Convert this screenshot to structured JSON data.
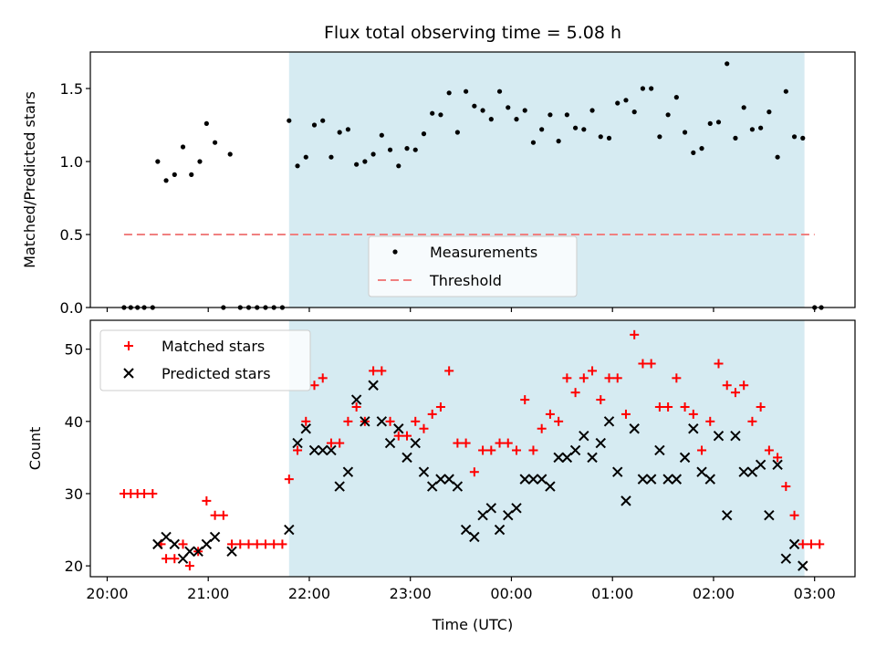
{
  "figure": {
    "title": "Flux total observing time = 5.08 h",
    "xlabel": "Time (UTC)"
  },
  "chart_data": [
    {
      "type": "scatter",
      "ylabel": "Matched/Predicted stars",
      "ylim": [
        0,
        1.75
      ],
      "yticks": [
        "0.0",
        "0.5",
        "1.0",
        "1.5"
      ],
      "xlim": [
        "19:50",
        "03:24"
      ],
      "shaded_region": [
        "21:48",
        "02:54"
      ],
      "threshold": {
        "name": "Threshold",
        "value": 0.5,
        "x_range": [
          "20:10",
          "03:00"
        ],
        "color": "#f08080"
      },
      "legend": [
        "Measurements",
        "Threshold"
      ],
      "legend_position": "bottom-center",
      "series": [
        {
          "name": "Measurements",
          "color": "#000000",
          "points": [
            [
              "20:10",
              0
            ],
            [
              "20:14",
              0
            ],
            [
              "20:18",
              0
            ],
            [
              "20:22",
              0
            ],
            [
              "20:27",
              0
            ],
            [
              "20:30",
              1.0
            ],
            [
              "20:35",
              0.87
            ],
            [
              "20:40",
              0.91
            ],
            [
              "20:45",
              1.1
            ],
            [
              "20:50",
              0.91
            ],
            [
              "20:55",
              1.0
            ],
            [
              "20:59",
              1.26
            ],
            [
              "21:04",
              1.13
            ],
            [
              "21:13",
              1.05
            ],
            [
              "21:09",
              0
            ],
            [
              "21:19",
              0
            ],
            [
              "21:24",
              0
            ],
            [
              "21:29",
              0
            ],
            [
              "21:34",
              0
            ],
            [
              "21:39",
              0
            ],
            [
              "21:44",
              0
            ],
            [
              "21:48",
              1.28
            ],
            [
              "21:53",
              0.97
            ],
            [
              "21:58",
              1.03
            ],
            [
              "22:03",
              1.25
            ],
            [
              "22:08",
              1.28
            ],
            [
              "22:13",
              1.03
            ],
            [
              "22:18",
              1.2
            ],
            [
              "22:23",
              1.22
            ],
            [
              "22:28",
              0.98
            ],
            [
              "22:33",
              1.0
            ],
            [
              "22:38",
              1.05
            ],
            [
              "22:43",
              1.18
            ],
            [
              "22:48",
              1.08
            ],
            [
              "22:53",
              0.97
            ],
            [
              "22:58",
              1.09
            ],
            [
              "23:03",
              1.08
            ],
            [
              "23:08",
              1.19
            ],
            [
              "23:13",
              1.33
            ],
            [
              "23:18",
              1.32
            ],
            [
              "23:23",
              1.47
            ],
            [
              "23:28",
              1.2
            ],
            [
              "23:33",
              1.48
            ],
            [
              "23:38",
              1.38
            ],
            [
              "23:43",
              1.35
            ],
            [
              "23:48",
              1.29
            ],
            [
              "23:53",
              1.48
            ],
            [
              "23:58",
              1.37
            ],
            [
              "00:03",
              1.29
            ],
            [
              "00:08",
              1.35
            ],
            [
              "00:13",
              1.13
            ],
            [
              "00:18",
              1.22
            ],
            [
              "00:23",
              1.32
            ],
            [
              "00:28",
              1.14
            ],
            [
              "00:33",
              1.32
            ],
            [
              "00:38",
              1.23
            ],
            [
              "00:43",
              1.22
            ],
            [
              "00:48",
              1.35
            ],
            [
              "00:53",
              1.17
            ],
            [
              "00:58",
              1.16
            ],
            [
              "01:03",
              1.4
            ],
            [
              "01:08",
              1.42
            ],
            [
              "01:13",
              1.34
            ],
            [
              "01:18",
              1.5
            ],
            [
              "01:23",
              1.5
            ],
            [
              "01:28",
              1.17
            ],
            [
              "01:33",
              1.32
            ],
            [
              "01:38",
              1.44
            ],
            [
              "01:43",
              1.2
            ],
            [
              "01:48",
              1.06
            ],
            [
              "01:53",
              1.09
            ],
            [
              "01:58",
              1.26
            ],
            [
              "02:03",
              1.27
            ],
            [
              "02:08",
              1.67
            ],
            [
              "02:13",
              1.16
            ],
            [
              "02:18",
              1.37
            ],
            [
              "02:23",
              1.22
            ],
            [
              "02:28",
              1.23
            ],
            [
              "02:33",
              1.34
            ],
            [
              "02:38",
              1.03
            ],
            [
              "02:43",
              1.48
            ],
            [
              "02:48",
              1.17
            ],
            [
              "02:53",
              1.16
            ],
            [
              "03:00",
              0
            ],
            [
              "03:04",
              0
            ]
          ]
        }
      ]
    },
    {
      "type": "scatter",
      "ylabel": "Count",
      "ylim": [
        18.5,
        54
      ],
      "yticks": [
        "20",
        "30",
        "40",
        "50"
      ],
      "xlim": [
        "19:50",
        "03:24"
      ],
      "xticks": [
        "20:00",
        "21:00",
        "22:00",
        "23:00",
        "00:00",
        "01:00",
        "02:00",
        "03:00"
      ],
      "shaded_region": [
        "21:48",
        "02:54"
      ],
      "legend": [
        "Matched stars",
        "Predicted stars"
      ],
      "legend_position": "top-left",
      "series": [
        {
          "name": "Matched stars",
          "color": "#ff0000",
          "marker": "plus",
          "points": [
            [
              "20:10",
              30
            ],
            [
              "20:14",
              30
            ],
            [
              "20:18",
              30
            ],
            [
              "20:22",
              30
            ],
            [
              "20:27",
              30
            ],
            [
              "20:32",
              23
            ],
            [
              "20:35",
              21
            ],
            [
              "20:40",
              21
            ],
            [
              "20:45",
              23
            ],
            [
              "20:49",
              20
            ],
            [
              "20:54",
              22
            ],
            [
              "20:59",
              29
            ],
            [
              "21:04",
              27
            ],
            [
              "21:09",
              27
            ],
            [
              "21:14",
              23
            ],
            [
              "21:19",
              23
            ],
            [
              "21:24",
              23
            ],
            [
              "21:29",
              23
            ],
            [
              "21:34",
              23
            ],
            [
              "21:39",
              23
            ],
            [
              "21:44",
              23
            ],
            [
              "21:48",
              32
            ],
            [
              "21:53",
              36
            ],
            [
              "21:58",
              40
            ],
            [
              "22:03",
              45
            ],
            [
              "22:08",
              46
            ],
            [
              "22:13",
              37
            ],
            [
              "22:18",
              37
            ],
            [
              "22:23",
              40
            ],
            [
              "22:28",
              42
            ],
            [
              "22:33",
              40
            ],
            [
              "22:38",
              47
            ],
            [
              "22:43",
              47
            ],
            [
              "22:48",
              40
            ],
            [
              "22:53",
              38
            ],
            [
              "22:58",
              38
            ],
            [
              "23:03",
              40
            ],
            [
              "23:08",
              39
            ],
            [
              "23:13",
              41
            ],
            [
              "23:18",
              42
            ],
            [
              "23:23",
              47
            ],
            [
              "23:28",
              37
            ],
            [
              "23:33",
              37
            ],
            [
              "23:38",
              33
            ],
            [
              "23:43",
              36
            ],
            [
              "23:48",
              36
            ],
            [
              "23:53",
              37
            ],
            [
              "23:58",
              37
            ],
            [
              "00:03",
              36
            ],
            [
              "00:08",
              43
            ],
            [
              "00:13",
              36
            ],
            [
              "00:18",
              39
            ],
            [
              "00:23",
              41
            ],
            [
              "00:28",
              40
            ],
            [
              "00:33",
              46
            ],
            [
              "00:38",
              44
            ],
            [
              "00:43",
              46
            ],
            [
              "00:48",
              47
            ],
            [
              "00:53",
              43
            ],
            [
              "00:58",
              46
            ],
            [
              "01:03",
              46
            ],
            [
              "01:08",
              41
            ],
            [
              "01:13",
              52
            ],
            [
              "01:18",
              48
            ],
            [
              "01:23",
              48
            ],
            [
              "01:28",
              42
            ],
            [
              "01:33",
              42
            ],
            [
              "01:38",
              46
            ],
            [
              "01:43",
              42
            ],
            [
              "01:48",
              41
            ],
            [
              "01:53",
              36
            ],
            [
              "01:58",
              40
            ],
            [
              "02:03",
              48
            ],
            [
              "02:08",
              45
            ],
            [
              "02:13",
              44
            ],
            [
              "02:18",
              45
            ],
            [
              "02:23",
              40
            ],
            [
              "02:28",
              42
            ],
            [
              "02:33",
              36
            ],
            [
              "02:38",
              35
            ],
            [
              "02:43",
              31
            ],
            [
              "02:48",
              27
            ],
            [
              "02:53",
              23
            ],
            [
              "02:58",
              23
            ],
            [
              "03:03",
              23
            ]
          ]
        },
        {
          "name": "Predicted stars",
          "color": "#000000",
          "marker": "x",
          "points": [
            [
              "20:30",
              23
            ],
            [
              "20:35",
              24
            ],
            [
              "20:40",
              23
            ],
            [
              "20:45",
              21
            ],
            [
              "20:49",
              22
            ],
            [
              "20:54",
              22
            ],
            [
              "20:59",
              23
            ],
            [
              "21:04",
              24
            ],
            [
              "21:14",
              22
            ],
            [
              "21:48",
              25
            ],
            [
              "21:53",
              37
            ],
            [
              "21:58",
              39
            ],
            [
              "22:03",
              36
            ],
            [
              "22:08",
              36
            ],
            [
              "22:13",
              36
            ],
            [
              "22:18",
              31
            ],
            [
              "22:23",
              33
            ],
            [
              "22:28",
              43
            ],
            [
              "22:33",
              40
            ],
            [
              "22:38",
              45
            ],
            [
              "22:43",
              40
            ],
            [
              "22:48",
              37
            ],
            [
              "22:53",
              39
            ],
            [
              "22:58",
              35
            ],
            [
              "23:03",
              37
            ],
            [
              "23:08",
              33
            ],
            [
              "23:13",
              31
            ],
            [
              "23:18",
              32
            ],
            [
              "23:23",
              32
            ],
            [
              "23:28",
              31
            ],
            [
              "23:33",
              25
            ],
            [
              "23:38",
              24
            ],
            [
              "23:43",
              27
            ],
            [
              "23:48",
              28
            ],
            [
              "23:53",
              25
            ],
            [
              "23:58",
              27
            ],
            [
              "00:03",
              28
            ],
            [
              "00:08",
              32
            ],
            [
              "00:13",
              32
            ],
            [
              "00:18",
              32
            ],
            [
              "00:23",
              31
            ],
            [
              "00:28",
              35
            ],
            [
              "00:33",
              35
            ],
            [
              "00:38",
              36
            ],
            [
              "00:43",
              38
            ],
            [
              "00:48",
              35
            ],
            [
              "00:53",
              37
            ],
            [
              "00:58",
              40
            ],
            [
              "01:03",
              33
            ],
            [
              "01:08",
              29
            ],
            [
              "01:13",
              39
            ],
            [
              "01:18",
              32
            ],
            [
              "01:23",
              32
            ],
            [
              "01:28",
              36
            ],
            [
              "01:33",
              32
            ],
            [
              "01:38",
              32
            ],
            [
              "01:43",
              35
            ],
            [
              "01:48",
              39
            ],
            [
              "01:53",
              33
            ],
            [
              "01:58",
              32
            ],
            [
              "02:03",
              38
            ],
            [
              "02:08",
              27
            ],
            [
              "02:13",
              38
            ],
            [
              "02:18",
              33
            ],
            [
              "02:23",
              33
            ],
            [
              "02:28",
              34
            ],
            [
              "02:33",
              27
            ],
            [
              "02:38",
              34
            ],
            [
              "02:43",
              21
            ],
            [
              "02:48",
              23
            ],
            [
              "02:53",
              20
            ]
          ]
        }
      ]
    }
  ]
}
